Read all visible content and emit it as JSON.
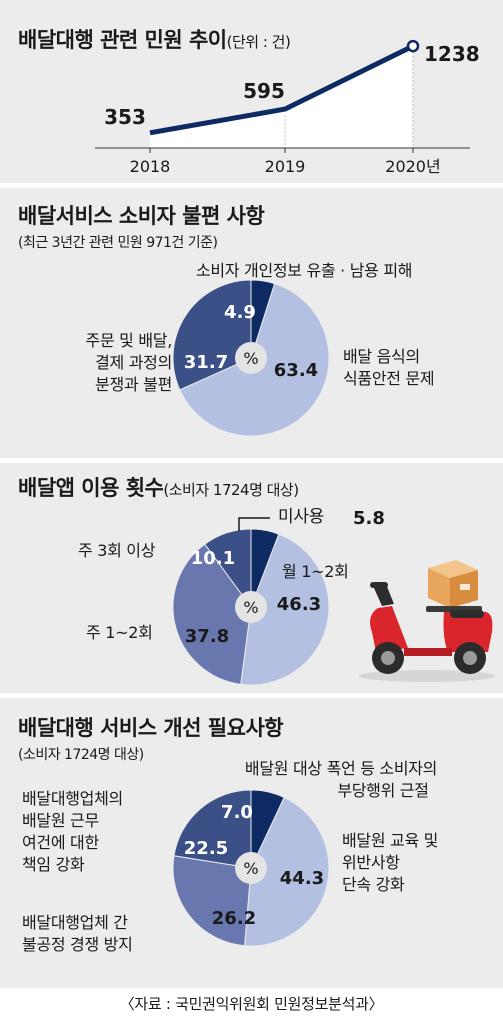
{
  "line_chart": {
    "title": "배달대행 관련 민원 추이",
    "unit": "(단위 : 건)"
  },
  "service_chart": {
    "title": "배달서비스 소비자 불편 사항",
    "note": "(최근 3년간 관련 민원 971건 기준)",
    "center": "%",
    "labels": {
      "leak": "소비자 개인정보 유출 · 남용 피해",
      "order": [
        "주문 및 배달,",
        "결제 과정의",
        "분쟁과 불편"
      ],
      "food": [
        "배달 음식의",
        "식품안전 문제"
      ]
    }
  },
  "usage_chart": {
    "title": "배달앱 이용 횟수",
    "note": "(소비자 1724명 대상)",
    "center": "%",
    "labels": {
      "none": "미사용",
      "weekly3": "주 3회 이상",
      "weekly12": "주 1~2회",
      "monthly12": "월 1~2회"
    }
  },
  "needs_chart": {
    "title": "배달대행 서비스 개선 필요사항",
    "note": "(소비자 1724명 대상)",
    "center": "%",
    "labels": {
      "abuse": [
        "배달원 대상 폭언 등 소비자의",
        "부당행위 근절"
      ],
      "work": [
        "배달대행업체의",
        "배달원 근무",
        "여건에 대한",
        "책임 강화"
      ],
      "fair": [
        "배달대행업체 간",
        "불공정 경쟁 방지"
      ],
      "edu": [
        "배달원 교육 및",
        "위반사항",
        "단속 강화"
      ]
    }
  },
  "source": "〈자료 : 국민권익위원회 민원정보분석과〉",
  "icons": {
    "scooter": "delivery-scooter-icon"
  },
  "colors": {
    "navy": "#0e2a63",
    "dark": "#3c5088",
    "mid": "#6878ae",
    "light": "#b3c0e2",
    "panel": "#ececec"
  },
  "chart_data": [
    {
      "type": "line",
      "x": [
        "2018",
        "2019",
        "2020년"
      ],
      "series": [
        {
          "values": [
            353,
            595,
            1238
          ]
        }
      ],
      "title": "배달대행 관련 민원 추이",
      "xlabel": "",
      "ylabel": ""
    },
    {
      "type": "pie",
      "title": "배달서비스 소비자 불편 사항",
      "categories": [
        "소비자 개인정보 유출 · 남용 피해",
        "배달 음식의 식품안전 문제",
        "주문 및 배달, 결제 과정의 분쟁과 불편"
      ],
      "values": [
        4.9,
        63.4,
        31.7
      ],
      "value_labels": [
        "4.9",
        "63.4",
        "31.7"
      ]
    },
    {
      "type": "pie",
      "title": "배달앱 이용 횟수",
      "categories": [
        "미사용",
        "월 1~2회",
        "주 1~2회",
        "주 3회 이상"
      ],
      "values": [
        5.8,
        46.3,
        37.8,
        10.1
      ],
      "value_labels": [
        "",
        "46.3",
        "37.8",
        "10.1"
      ]
    },
    {
      "type": "pie",
      "title": "배달대행 서비스 개선 필요사항",
      "categories": [
        "배달원 대상 폭언 등 소비자의 부당행위 근절",
        "배달원 교육 및 위반사항 단속 강화",
        "배달대행업체 간 불공정 경쟁 방지",
        "배달대행업체의 배달원 근무 여건에 대한 책임 강화"
      ],
      "values": [
        7.0,
        44.3,
        26.2,
        22.5
      ],
      "value_labels": [
        "7.0",
        "44.3",
        "26.2",
        "22.5"
      ]
    }
  ]
}
